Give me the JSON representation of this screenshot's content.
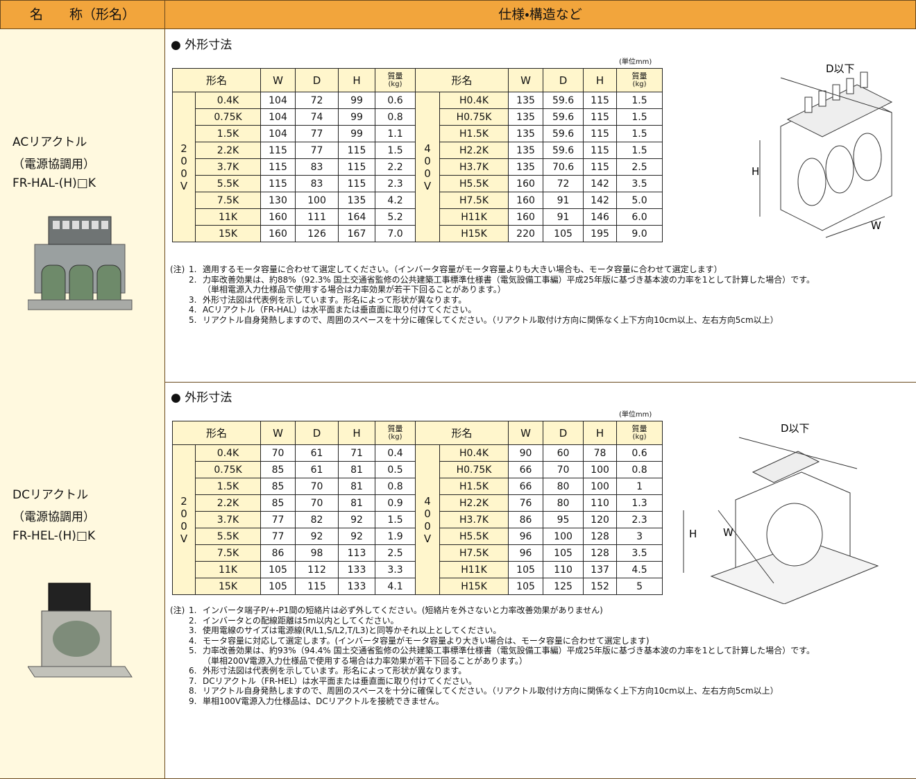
{
  "header": {
    "name": "名　　称（形名）",
    "spec": "仕様・構造など"
  },
  "sections": [
    {
      "name_lines": [
        "ACリアクトル",
        "（電源協調用）",
        "FR-HAL-(H)□K"
      ],
      "subtitle": "● 外形寸法",
      "unit": "(単位mm)",
      "table": {
        "columns": [
          "形名",
          "W",
          "D",
          "H"
        ],
        "mass_label": "質量",
        "mass_unit": "(kg)",
        "groups": [
          {
            "voltage": "200V",
            "rows": [
              [
                "0.4K",
                "104",
                "72",
                "99",
                "0.6"
              ],
              [
                "0.75K",
                "104",
                "74",
                "99",
                "0.8"
              ],
              [
                "1.5K",
                "104",
                "77",
                "99",
                "1.1"
              ],
              [
                "2.2K",
                "115",
                "77",
                "115",
                "1.5"
              ],
              [
                "3.7K",
                "115",
                "83",
                "115",
                "2.2"
              ],
              [
                "5.5K",
                "115",
                "83",
                "115",
                "2.3"
              ],
              [
                "7.5K",
                "130",
                "100",
                "135",
                "4.2"
              ],
              [
                "11K",
                "160",
                "111",
                "164",
                "5.2"
              ],
              [
                "15K",
                "160",
                "126",
                "167",
                "7.0"
              ]
            ]
          },
          {
            "voltage": "400V",
            "rows": [
              [
                "H0.4K",
                "135",
                "59.6",
                "115",
                "1.5"
              ],
              [
                "H0.75K",
                "135",
                "59.6",
                "115",
                "1.5"
              ],
              [
                "H1.5K",
                "135",
                "59.6",
                "115",
                "1.5"
              ],
              [
                "H2.2K",
                "135",
                "59.6",
                "115",
                "1.5"
              ],
              [
                "H3.7K",
                "135",
                "70.6",
                "115",
                "2.5"
              ],
              [
                "H5.5K",
                "160",
                "72",
                "142",
                "3.5"
              ],
              [
                "H7.5K",
                "160",
                "91",
                "142",
                "5.0"
              ],
              [
                "H11K",
                "160",
                "91",
                "146",
                "6.0"
              ],
              [
                "H15K",
                "220",
                "105",
                "195",
                "9.0"
              ]
            ]
          }
        ]
      },
      "diagram": {
        "d": "D以下",
        "h": "H",
        "w": "W"
      },
      "notes_label": "(注)",
      "notes": [
        {
          "num": "1.",
          "text": "適用するモータ容量に合わせて選定してください。（インバータ容量がモータ容量よりも大きい場合も、モータ容量に合わせて選定します）"
        },
        {
          "num": "2.",
          "text": "力率改善効果は、約88%（92.3% 国土交通省監修の公共建築工事標準仕様書（電気設備工事編）平成25年版に基づき基本波の力率を1として計算した場合）です。",
          "extra": "（単相電源入力仕様品で使用する場合は力率効果が若干下回ることがあります。）"
        },
        {
          "num": "3.",
          "text": "外形寸法図は代表例を示しています。形名によって形状が異なります。"
        },
        {
          "num": "4.",
          "text": "ACリアクトル（FR-HAL）は水平面または垂直面に取り付けてください。"
        },
        {
          "num": "5.",
          "text": "リアクトル自身発熱しますので、周囲のスペースを十分に確保してください。（リアクトル取付け方向に関係なく上下方向10cm以上、左右方向5cm以上）"
        }
      ]
    },
    {
      "name_lines": [
        "DCリアクトル",
        "（電源協調用）",
        "FR-HEL-(H)□K"
      ],
      "subtitle": "● 外形寸法",
      "unit": "(単位mm)",
      "table": {
        "columns": [
          "形名",
          "W",
          "D",
          "H"
        ],
        "mass_label": "質量",
        "mass_unit": "(kg)",
        "groups": [
          {
            "voltage": "200V",
            "rows": [
              [
                "0.4K",
                "70",
                "61",
                "71",
                "0.4"
              ],
              [
                "0.75K",
                "85",
                "61",
                "81",
                "0.5"
              ],
              [
                "1.5K",
                "85",
                "70",
                "81",
                "0.8"
              ],
              [
                "2.2K",
                "85",
                "70",
                "81",
                "0.9"
              ],
              [
                "3.7K",
                "77",
                "82",
                "92",
                "1.5"
              ],
              [
                "5.5K",
                "77",
                "92",
                "92",
                "1.9"
              ],
              [
                "7.5K",
                "86",
                "98",
                "113",
                "2.5"
              ],
              [
                "11K",
                "105",
                "112",
                "133",
                "3.3"
              ],
              [
                "15K",
                "105",
                "115",
                "133",
                "4.1"
              ]
            ]
          },
          {
            "voltage": "400V",
            "rows": [
              [
                "H0.4K",
                "90",
                "60",
                "78",
                "0.6"
              ],
              [
                "H0.75K",
                "66",
                "70",
                "100",
                "0.8"
              ],
              [
                "H1.5K",
                "66",
                "80",
                "100",
                "1"
              ],
              [
                "H2.2K",
                "76",
                "80",
                "110",
                "1.3"
              ],
              [
                "H3.7K",
                "86",
                "95",
                "120",
                "2.3"
              ],
              [
                "H5.5K",
                "96",
                "100",
                "128",
                "3"
              ],
              [
                "H7.5K",
                "96",
                "105",
                "128",
                "3.5"
              ],
              [
                "H11K",
                "105",
                "110",
                "137",
                "4.5"
              ],
              [
                "H15K",
                "105",
                "125",
                "152",
                "5"
              ]
            ]
          }
        ]
      },
      "diagram": {
        "d": "D以下",
        "h": "H",
        "w": "W"
      },
      "notes_label": "(注)",
      "notes": [
        {
          "num": "1.",
          "text": "インバータ端子P/+-P1間の短絡片は必ず外してください。(短絡片を外さないと力率改善効果がありません)"
        },
        {
          "num": "2.",
          "text": "インバータとの配線距離は5m以内としてください。"
        },
        {
          "num": "3.",
          "text": "使用電線のサイズは電源線(R/L1,S/L2,T/L3)と同等かそれ以上としてください。"
        },
        {
          "num": "4.",
          "text": "モータ容量に対応して選定します。(インバータ容量がモータ容量より大きい場合は、モータ容量に合わせて選定します)"
        },
        {
          "num": "5.",
          "text": "力率改善効果は、約93%（94.4% 国土交通省監修の公共建築工事標準仕様書（電気設備工事編）平成25年版に基づき基本波の力率を1として計算した場合）です。",
          "extra": "（単相200V電源入力仕様品で使用する場合は力率効果が若干下回ることがあります。）"
        },
        {
          "num": "6.",
          "text": "外形寸法図は代表例を示しています。形名によって形状が異なります。"
        },
        {
          "num": "7.",
          "text": "DCリアクトル（FR-HEL）は水平面または垂直面に取り付けてください。"
        },
        {
          "num": "8.",
          "text": "リアクトル自身発熱しますので、周囲のスペースを十分に確保してください。（リアクトル取付け方向に関係なく上下方向10cm以上、左右方向5cm以上）"
        },
        {
          "num": "9.",
          "text": "単相100V電源入力仕様品は、DCリアクトルを接続できません。"
        }
      ]
    }
  ]
}
